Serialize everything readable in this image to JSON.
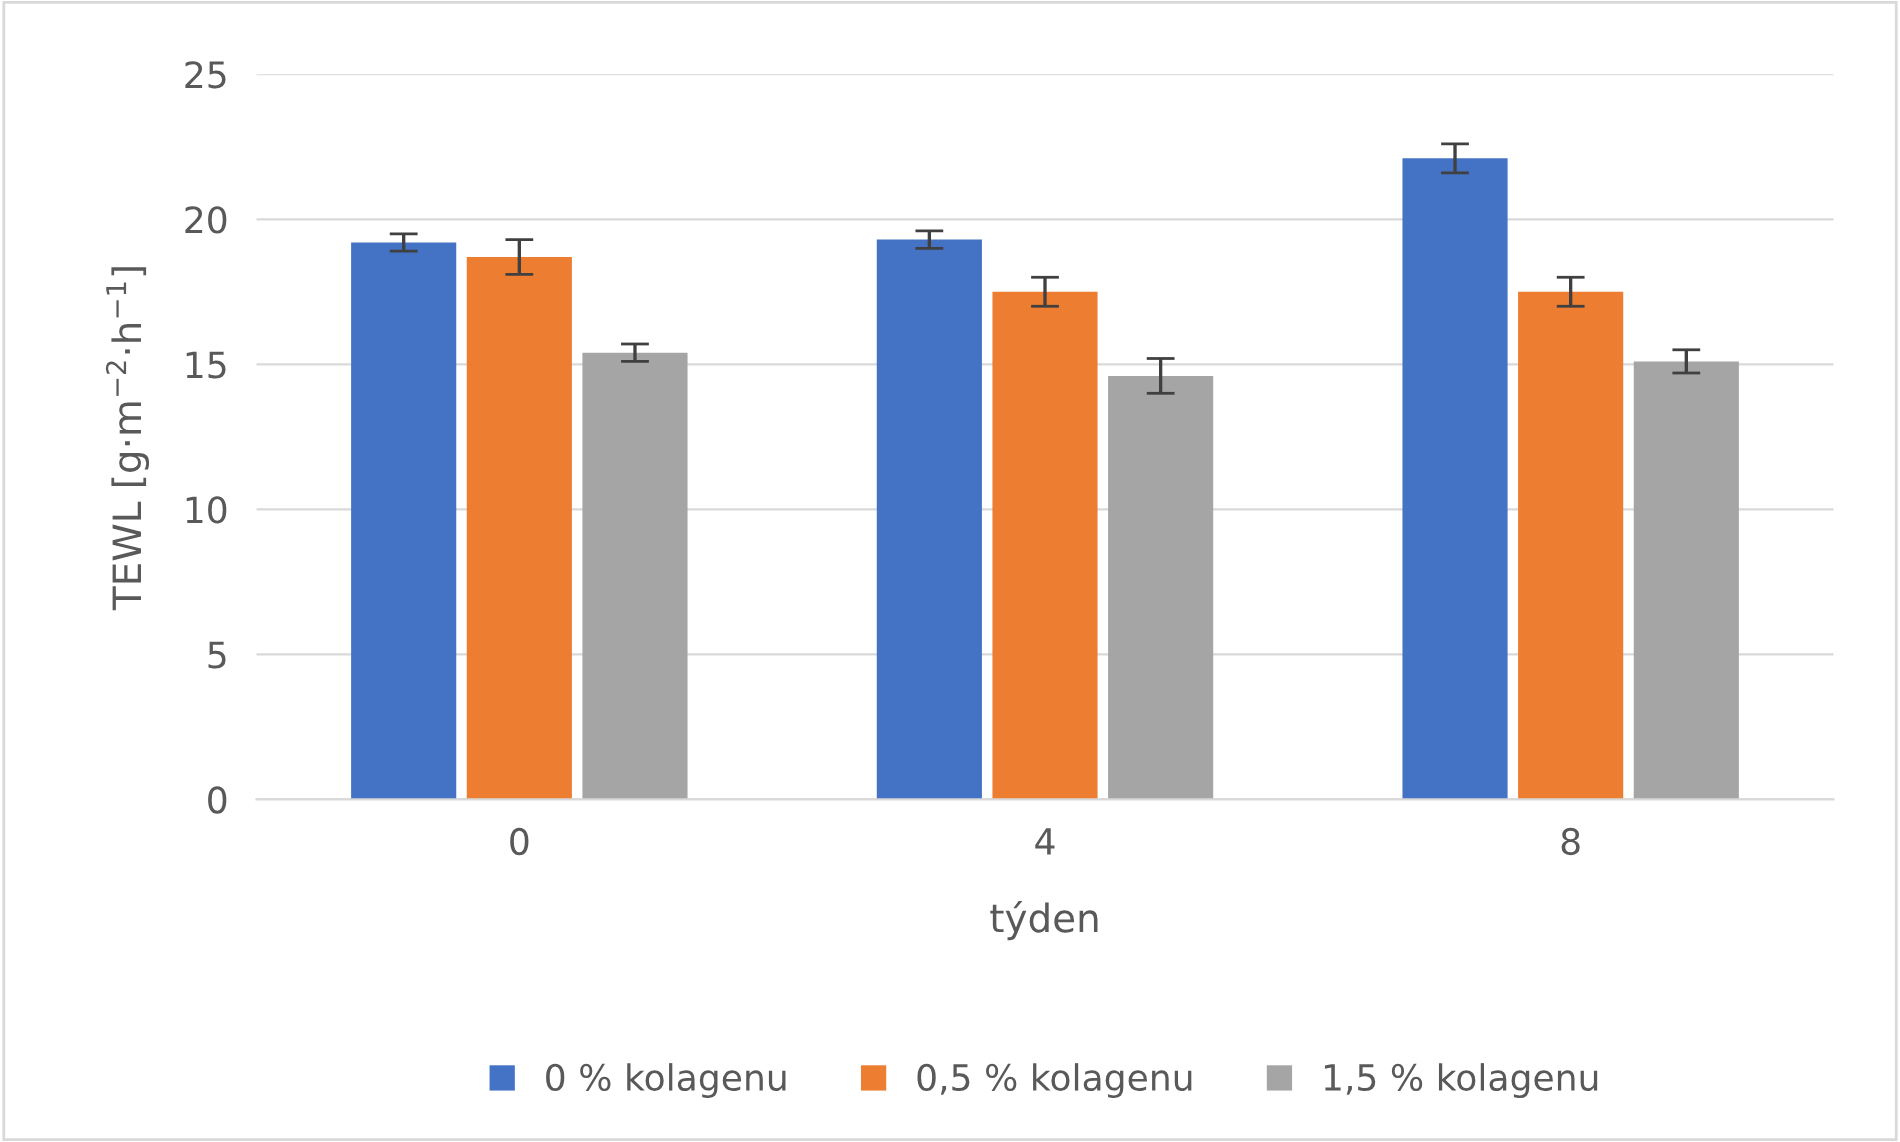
{
  "chart_data": {
    "type": "bar",
    "xlabel": "týden",
    "ylabel": "TEWL [g·m$^{−2}$·h$^{−1}$]",
    "categories": [
      "0",
      "4",
      "8"
    ],
    "series": [
      {
        "name": "0 % kolagenu",
        "color": "#4472c4",
        "values": [
          19.2,
          19.3,
          22.1
        ],
        "errors": [
          0.3,
          0.3,
          0.5
        ]
      },
      {
        "name": "0,5 % kolagenu",
        "color": "#ed7d31",
        "values": [
          18.7,
          17.5,
          17.5
        ],
        "errors": [
          0.6,
          0.5,
          0.5
        ]
      },
      {
        "name": "1,5 % kolagenu",
        "color": "#a5a5a5",
        "values": [
          15.4,
          14.6,
          15.1
        ],
        "errors": [
          0.3,
          0.6,
          0.4
        ]
      }
    ],
    "ylim": [
      0,
      25
    ],
    "yticks": [
      0,
      5,
      10,
      15,
      20,
      25
    ],
    "grid": "y",
    "legend": "bottom"
  }
}
